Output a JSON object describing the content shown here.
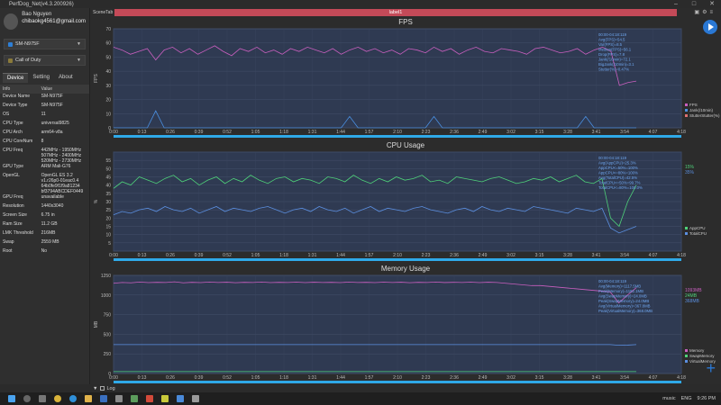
{
  "window": {
    "title": "PerfDog_Net(v4.3.200926)",
    "min": "–",
    "max": "□",
    "close": "✕"
  },
  "user": {
    "name": "Bao Nguyen",
    "email": "chibaokg4561@gmail.com"
  },
  "device_select": "SM-N975F",
  "app_select": "Call of Duty",
  "side_tabs": [
    "Device",
    "Setting",
    "About"
  ],
  "info": {
    "headers": [
      "Info",
      "Value"
    ],
    "rows": [
      [
        "Device Name",
        "SM-N975F"
      ],
      [
        "Device Type",
        "SM-N975F"
      ],
      [
        "OS",
        "11"
      ],
      [
        "CPU Type",
        "universal9825"
      ],
      [
        "CPU Arch",
        "arm64-v8a"
      ],
      [
        "CPU CoreNum",
        "8"
      ],
      [
        "CPU Freq",
        "442MHz - 1950MHz\n507MHz - 2400MHz\n520MHz - 2730MHz"
      ],
      [
        "GPU Type",
        "ARM Mali-G76"
      ],
      [
        "OpenGL",
        "OpenGL ES 3.2\nv1.r26p0-01eac0.4\n64b0fe9f1f9a81234\nbf3794ABCDEF0449"
      ],
      [
        "GPU Freq",
        "unavailable"
      ],
      [
        "Resolution",
        "1440x3040"
      ],
      [
        "Screen Size",
        "6.75 in"
      ],
      [
        "Ram Size",
        "11.2 GB"
      ],
      [
        "LMK Threshold",
        "216MB"
      ],
      [
        "Swap",
        "2559 MB"
      ],
      [
        "Root",
        "No"
      ]
    ]
  },
  "scene_tab": "SceneTab",
  "label1": "label1",
  "time_ticks": [
    "0:00",
    "0:13",
    "0:26",
    "0:39",
    "0:52",
    "1:05",
    "1:18",
    "1:31",
    "1:44",
    "1:57",
    "2:10",
    "2:23",
    "2:36",
    "2:49",
    "3:02",
    "3:15",
    "3:28",
    "3:41",
    "3:54",
    "4:07",
    "4:18"
  ],
  "log_label": "Log",
  "tray": {
    "music": "music",
    "lang": "ENG",
    "time": "9:26 PM"
  },
  "chart_data": [
    {
      "type": "line",
      "title": "FPS",
      "ylabel": "FPS",
      "ylim": [
        0,
        70
      ],
      "yticks": [
        0,
        10,
        20,
        30,
        40,
        50,
        60,
        70
      ],
      "grid": true,
      "legend": [
        "FPS",
        "Jank(/10min)",
        "StutterStutter(%)"
      ],
      "colors": {
        "fps": "#c95fbf",
        "jank": "#4a90e2",
        "stutter": "#e07070"
      },
      "series": [
        {
          "name": "FPS",
          "values": [
            57,
            55,
            52,
            54,
            56,
            48,
            55,
            57,
            53,
            56,
            52,
            55,
            58,
            54,
            51,
            56,
            54,
            57,
            53,
            55,
            52,
            56,
            54,
            57,
            55,
            53,
            56,
            52,
            55,
            57,
            54,
            56,
            53,
            55,
            52,
            56,
            55,
            53,
            57,
            54,
            56,
            52,
            55,
            57,
            54,
            53,
            56,
            55,
            54,
            52,
            56,
            57,
            55,
            53,
            54,
            56,
            52,
            55,
            57,
            54,
            30,
            32,
            33
          ]
        },
        {
          "name": "Jank(/10min)",
          "values": [
            0,
            0,
            0,
            0,
            0,
            12,
            0,
            0,
            0,
            0,
            0,
            0,
            0,
            0,
            0,
            0,
            0,
            0,
            0,
            0,
            0,
            0,
            0,
            0,
            0,
            0,
            0,
            0,
            8,
            0,
            0,
            0,
            0,
            0,
            0,
            0,
            0,
            0,
            8,
            0,
            0,
            0,
            0,
            0,
            0,
            0,
            0,
            0,
            0,
            0,
            0,
            0,
            0,
            0,
            0,
            0,
            8,
            0,
            0,
            0,
            0,
            0,
            0
          ]
        }
      ],
      "annotation": [
        "00:00-04:18:119",
        "Avg(FPS)=54.5",
        "Var(FPS)=8.5",
        "Median(FPS)=56.1",
        "Drop(FPS)=7.8",
        "Jank(/10min)=72.1",
        "BigJank(/10min)=3.1",
        "Stutter(%)=0.47%"
      ]
    },
    {
      "type": "line",
      "title": "CPU Usage",
      "ylabel": "%",
      "ylim": [
        0,
        60
      ],
      "yticks": [
        5,
        10,
        15,
        20,
        25,
        30,
        35,
        40,
        45,
        50,
        55
      ],
      "grid": true,
      "legend": [
        "AppCPU",
        "TotalCPU"
      ],
      "legend_values": [
        "15%",
        "35%"
      ],
      "colors": {
        "app": "#4fd27a",
        "total": "#5b8fe0"
      },
      "series": [
        {
          "name": "TotalCPU",
          "values": [
            38,
            42,
            40,
            45,
            43,
            41,
            44,
            46,
            42,
            44,
            40,
            43,
            45,
            41,
            44,
            42,
            46,
            43,
            41,
            44,
            45,
            42,
            44,
            43,
            41,
            45,
            44,
            42,
            46,
            43,
            41,
            44,
            42,
            45,
            43,
            44,
            46,
            42,
            43,
            41,
            45,
            44,
            43,
            42,
            44,
            45,
            43,
            41,
            42,
            44,
            43,
            45,
            42,
            44,
            46,
            42,
            41,
            44,
            20,
            15,
            30,
            40
          ]
        },
        {
          "name": "AppCPU",
          "values": [
            22,
            24,
            23,
            25,
            26,
            24,
            27,
            25,
            24,
            26,
            23,
            25,
            27,
            24,
            26,
            25,
            24,
            26,
            27,
            25,
            23,
            25,
            26,
            24,
            27,
            25,
            24,
            26,
            23,
            25,
            27,
            24,
            26,
            25,
            24,
            26,
            27,
            25,
            24,
            23,
            25,
            26,
            24,
            27,
            25,
            24,
            26,
            25,
            24,
            27,
            26,
            25,
            24,
            23,
            26,
            25,
            24,
            26,
            14,
            11,
            13,
            15
          ]
        }
      ],
      "annotation": [
        "00:00-04:18:119",
        "Avg(AppCPU)=25.3%",
        "AppCPU<=50%=100%",
        "AppCPU<=80%=100%",
        "Avg(TotalCPU)=42.5%",
        "TotalCPU<=50%=99.7%",
        "TotalCPU<=80%=100.0%"
      ]
    },
    {
      "type": "line",
      "title": "Memory Usage",
      "ylabel": "MB",
      "ylim": [
        0,
        1250
      ],
      "yticks": [
        0,
        250,
        500,
        750,
        1000,
        1250
      ],
      "grid": true,
      "legend": [
        "Memory",
        "SwapMemory",
        "VirtualMemory"
      ],
      "legend_values": [
        "1093MB",
        "24MB",
        "368MB"
      ],
      "colors": {
        "memory": "#c95fbf",
        "swap": "#4fd27a",
        "virtual": "#5b8fe0"
      },
      "series": [
        {
          "name": "Memory",
          "values": [
            1150,
            1160,
            1155,
            1165,
            1158,
            1162,
            1160,
            1168,
            1155,
            1162,
            1158,
            1165,
            1160,
            1163,
            1157,
            1162,
            1160,
            1165,
            1158,
            1162,
            1160,
            1164,
            1158,
            1163,
            1160,
            1162,
            1158,
            1165,
            1160,
            1162,
            1158,
            1164,
            1160,
            1163,
            1157,
            1162,
            1160,
            1165,
            1159,
            1162,
            1160,
            1164,
            1158,
            1163,
            1160,
            1150,
            1140,
            1130,
            1120,
            1120,
            1110,
            1100,
            1090,
            1080,
            1070,
            1060,
            1050,
            1040,
            900,
            1000,
            1093
          ]
        },
        {
          "name": "SwapMemory",
          "values": [
            24,
            24,
            24,
            24,
            24,
            24,
            24,
            24,
            24,
            24,
            24,
            24,
            24,
            24,
            24,
            24,
            24,
            24,
            24,
            24,
            24,
            24,
            24,
            24,
            24,
            24,
            24,
            24,
            24,
            24,
            24,
            24,
            24,
            24,
            24,
            24,
            24,
            24,
            24,
            24,
            24,
            24,
            24,
            24,
            24,
            24,
            24,
            24,
            24,
            24,
            24,
            24,
            24,
            24,
            24,
            24,
            24,
            24,
            24,
            24,
            24
          ]
        },
        {
          "name": "VirtualMemory",
          "values": [
            368,
            368,
            368,
            368,
            368,
            368,
            368,
            368,
            368,
            368,
            368,
            368,
            368,
            368,
            368,
            368,
            368,
            368,
            368,
            368,
            368,
            368,
            368,
            368,
            368,
            368,
            368,
            368,
            368,
            368,
            368,
            368,
            368,
            368,
            368,
            368,
            368,
            368,
            368,
            368,
            368,
            368,
            368,
            368,
            368,
            368,
            368,
            368,
            368,
            368,
            368,
            368,
            368,
            368,
            368,
            368,
            368,
            368,
            360,
            362,
            368
          ]
        }
      ],
      "annotation": [
        "00:00-04:18:119",
        "Avg(Memory)=1117.5MB",
        "Peak(Memory)=1182.1MB",
        "Avg(SwapMemory)=24.0MB",
        "Peak(SwapMemory)=24.0MB",
        "Avg(VirtualMemory)=367.8MB",
        "Peak(VirtualMemory)=368.0MB"
      ]
    }
  ]
}
